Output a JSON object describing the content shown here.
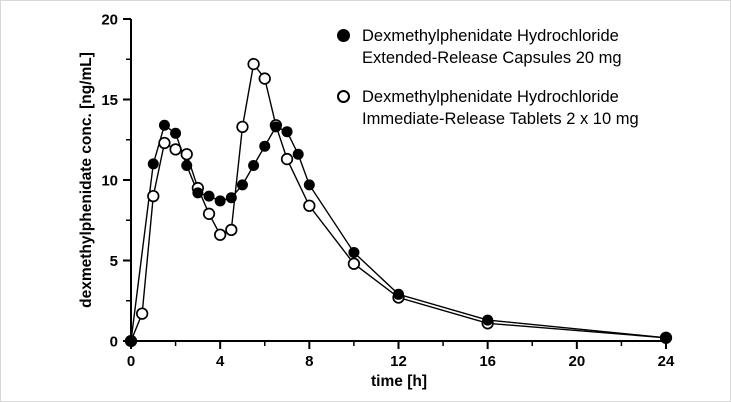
{
  "chart_data": {
    "type": "line",
    "title": "",
    "xlabel": "time [h]",
    "ylabel": "dexmethylphenidate conc. [ng/mL]",
    "xlim": [
      0,
      24
    ],
    "ylim": [
      0,
      20
    ],
    "x_ticks_major": [
      0,
      4,
      8,
      12,
      16,
      20,
      24
    ],
    "x_ticks_minor": [
      2,
      6,
      10,
      14,
      18,
      22
    ],
    "y_ticks_major": [
      0,
      5,
      10,
      15,
      20
    ],
    "y_ticks_minor": [
      2.5,
      7.5,
      12.5,
      17.5
    ],
    "grid": false,
    "legend_position": "inside-top-right",
    "line_color": "#000000",
    "background_color": "#ffffff",
    "series": [
      {
        "name": "Dexmethylphenidate Hydrochloride Extended-Release Capsules 20 mg",
        "label_line1": "Dexmethylphenidate Hydrochloride",
        "label_line2": "Extended-Release Capsules 20 mg",
        "marker": "filled-circle",
        "color": "#000000",
        "points": [
          [
            0,
            0
          ],
          [
            1,
            11.0
          ],
          [
            1.5,
            13.4
          ],
          [
            2,
            12.9
          ],
          [
            2.5,
            10.9
          ],
          [
            3,
            9.2
          ],
          [
            3.5,
            9.0
          ],
          [
            4,
            8.7
          ],
          [
            4.5,
            8.9
          ],
          [
            5,
            9.7
          ],
          [
            5.5,
            10.9
          ],
          [
            6,
            12.1
          ],
          [
            6.5,
            13.3
          ],
          [
            7,
            13.0
          ],
          [
            7.5,
            11.6
          ],
          [
            8,
            9.7
          ],
          [
            10,
            5.5
          ],
          [
            12,
            2.9
          ],
          [
            16,
            1.3
          ],
          [
            24,
            0.2
          ]
        ]
      },
      {
        "name": "Dexmethylphenidate Hydrochloride Immediate-Release Tablets 2 x 10 mg",
        "label_line1": "Dexmethylphenidate Hydrochloride",
        "label_line2": "Immediate-Release Tablets 2 x 10 mg",
        "marker": "open-circle",
        "color": "#000000",
        "points": [
          [
            0,
            0
          ],
          [
            0.5,
            1.7
          ],
          [
            1,
            9.0
          ],
          [
            1.5,
            12.3
          ],
          [
            2,
            11.9
          ],
          [
            2.5,
            11.6
          ],
          [
            3,
            9.5
          ],
          [
            3.5,
            7.9
          ],
          [
            4,
            6.6
          ],
          [
            4.5,
            6.9
          ],
          [
            5,
            13.3
          ],
          [
            5.5,
            17.2
          ],
          [
            6,
            16.3
          ],
          [
            6.5,
            13.4
          ],
          [
            7,
            11.3
          ],
          [
            8,
            8.4
          ],
          [
            10,
            4.8
          ],
          [
            12,
            2.7
          ],
          [
            16,
            1.1
          ],
          [
            24,
            0.2
          ]
        ]
      }
    ]
  }
}
